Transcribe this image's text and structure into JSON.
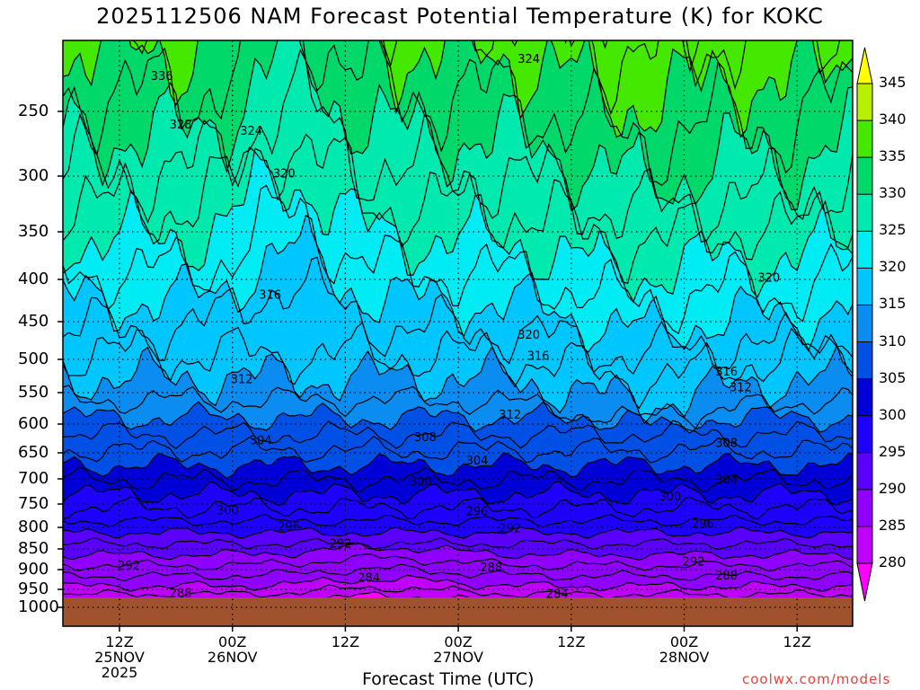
{
  "title": "2025112506 NAM Forecast Potential Temperature (K) for KOKC",
  "credit": "coolwx.com/models",
  "chart_data": {
    "type": "heatmap",
    "title": "2025112506 NAM Forecast Potential Temperature (K) for KOKC",
    "xlabel": "Forecast Time (UTC)",
    "ylabel": "",
    "y_levels": [
      250,
      300,
      350,
      400,
      450,
      500,
      550,
      600,
      650,
      700,
      750,
      800,
      850,
      900,
      950,
      1000
    ],
    "x_ticks": [
      {
        "hour": 12,
        "lines": [
          "12Z",
          "25NOV",
          "2025"
        ]
      },
      {
        "hour": 24,
        "lines": [
          "00Z",
          "26NOV"
        ]
      },
      {
        "hour": 36,
        "lines": [
          "12Z"
        ]
      },
      {
        "hour": 48,
        "lines": [
          "00Z",
          "27NOV"
        ]
      },
      {
        "hour": 60,
        "lines": [
          "12Z"
        ]
      },
      {
        "hour": 72,
        "lines": [
          "00Z",
          "28NOV"
        ]
      },
      {
        "hour": 84,
        "lines": [
          "12Z"
        ]
      }
    ],
    "x_range_hours": [
      6,
      90
    ],
    "colorbar": {
      "min": 280,
      "max": 345,
      "step": 5,
      "labels": [
        345,
        340,
        335,
        330,
        325,
        320,
        315,
        310,
        305,
        300,
        295,
        290,
        285,
        280
      ],
      "colors": [
        "#ff00ff",
        "#c000ff",
        "#9000ff",
        "#5a00ff",
        "#1e00ff",
        "#0000d6",
        "#0050e6",
        "#0a8cf0",
        "#00c6ff",
        "#00ecf5",
        "#00eab0",
        "#00d86a",
        "#44e800",
        "#b8f000",
        "#ffff00"
      ]
    },
    "contour_labels": [
      {
        "v": 336,
        "h": 16.5,
        "p": 225
      },
      {
        "v": 328,
        "h": 18.5,
        "p": 260
      },
      {
        "v": 324,
        "h": 26.0,
        "p": 265
      },
      {
        "v": 324,
        "h": 55.5,
        "p": 213
      },
      {
        "v": 320,
        "h": 29.5,
        "p": 298
      },
      {
        "v": 320,
        "h": 81.0,
        "p": 398
      },
      {
        "v": 316,
        "h": 28.0,
        "p": 418
      },
      {
        "v": 320,
        "h": 55.5,
        "p": 467
      },
      {
        "v": 316,
        "h": 56.5,
        "p": 495
      },
      {
        "v": 316,
        "h": 76.5,
        "p": 518
      },
      {
        "v": 312,
        "h": 25.0,
        "p": 530
      },
      {
        "v": 312,
        "h": 78.0,
        "p": 542
      },
      {
        "v": 312,
        "h": 53.5,
        "p": 585
      },
      {
        "v": 308,
        "h": 44.5,
        "p": 623
      },
      {
        "v": 308,
        "h": 76.5,
        "p": 633
      },
      {
        "v": 304,
        "h": 27.0,
        "p": 628
      },
      {
        "v": 304,
        "h": 50.0,
        "p": 665
      },
      {
        "v": 304,
        "h": 76.5,
        "p": 702
      },
      {
        "v": 300,
        "h": 44.0,
        "p": 705
      },
      {
        "v": 300,
        "h": 70.5,
        "p": 735
      },
      {
        "v": 300,
        "h": 23.5,
        "p": 763
      },
      {
        "v": 296,
        "h": 50.0,
        "p": 765
      },
      {
        "v": 296,
        "h": 74.0,
        "p": 792
      },
      {
        "v": 296,
        "h": 30.0,
        "p": 798
      },
      {
        "v": 292,
        "h": 53.5,
        "p": 802
      },
      {
        "v": 292,
        "h": 35.5,
        "p": 838
      },
      {
        "v": 292,
        "h": 13.0,
        "p": 890
      },
      {
        "v": 292,
        "h": 73.0,
        "p": 880
      },
      {
        "v": 288,
        "h": 51.5,
        "p": 895
      },
      {
        "v": 288,
        "h": 76.5,
        "p": 915
      },
      {
        "v": 288,
        "h": 18.5,
        "p": 960
      },
      {
        "v": 284,
        "h": 38.5,
        "p": 920
      },
      {
        "v": 284,
        "h": 58.5,
        "p": 962
      }
    ]
  }
}
